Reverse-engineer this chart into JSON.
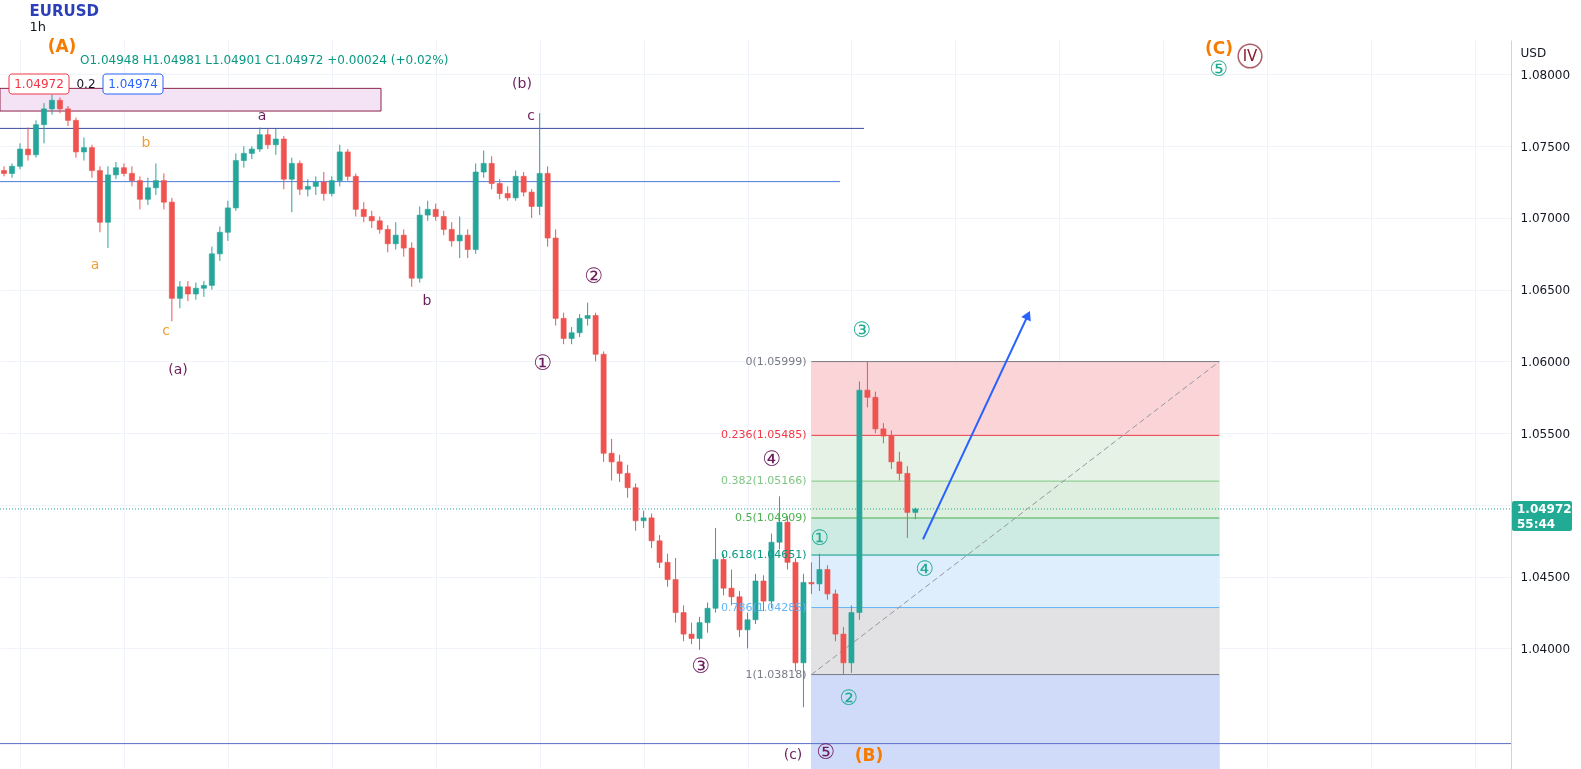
{
  "chart_data": {
    "type": "candlestick",
    "title": "EURUSD",
    "subtitle": "1h",
    "ylabel": "USD",
    "categories": [
      null,
      null,
      null,
      null,
      null,
      null,
      null,
      null,
      null,
      null,
      null,
      null,
      null,
      null,
      null,
      null,
      null,
      null,
      null,
      null,
      null,
      null,
      null,
      null,
      null,
      null,
      null,
      null,
      null,
      null,
      null,
      null,
      null,
      null,
      null,
      null,
      null,
      null,
      null,
      null,
      null,
      null,
      null,
      null,
      null,
      null,
      null,
      null,
      null,
      null,
      null,
      null,
      null,
      null,
      null,
      null,
      null,
      null,
      null,
      null,
      null,
      null,
      null,
      null,
      null,
      null,
      null,
      null,
      null,
      null,
      null,
      null,
      null,
      null,
      null,
      null,
      null,
      null,
      null,
      null,
      null,
      null,
      null,
      null,
      null,
      null,
      null,
      null,
      null,
      null,
      null,
      null,
      null,
      null,
      null,
      null,
      null,
      null,
      null,
      null,
      null,
      null,
      null,
      null,
      null,
      null,
      null,
      null,
      null,
      null,
      null,
      null,
      null,
      null,
      null,
      null,
      null,
      null,
      null,
      null,
      null,
      null,
      null,
      null,
      null,
      null,
      null,
      null,
      null,
      null,
      null,
      null,
      null,
      null,
      null,
      null,
      null,
      null,
      null,
      null,
      null,
      null,
      null,
      null,
      null,
      null,
      null,
      null,
      null,
      null,
      null,
      null,
      null,
      null,
      null,
      null,
      null,
      null,
      null,
      null,
      null,
      null,
      null,
      null,
      null,
      null,
      null,
      null,
      null,
      null,
      null,
      null,
      null,
      null,
      null,
      null,
      null,
      null,
      null,
      null,
      null,
      null,
      null,
      null,
      null,
      null,
      null,
      null,
      null
    ],
    "ohlc": [
      [
        1.0733,
        1.0736,
        1.0729,
        1.0731
      ],
      [
        1.0731,
        1.0738,
        1.0728,
        1.0736
      ],
      [
        1.0736,
        1.0752,
        1.0734,
        1.0748
      ],
      [
        1.0748,
        1.0763,
        1.074,
        1.0744
      ],
      [
        1.0744,
        1.0768,
        1.0742,
        1.0765
      ],
      [
        1.0765,
        1.078,
        1.0752,
        1.0776
      ],
      [
        1.0776,
        1.0786,
        1.0772,
        1.0782
      ],
      [
        1.0782,
        1.0784,
        1.0773,
        1.0776
      ],
      [
        1.0776,
        1.0778,
        1.0764,
        1.0768
      ],
      [
        1.0768,
        1.077,
        1.0742,
        1.0746
      ],
      [
        1.0746,
        1.0756,
        1.074,
        1.0749
      ],
      [
        1.0749,
        1.0751,
        1.0728,
        1.0733
      ],
      [
        1.0733,
        1.0736,
        1.069,
        1.0697
      ],
      [
        1.0697,
        1.0736,
        1.0679,
        1.073
      ],
      [
        1.073,
        1.0739,
        1.0727,
        1.0735
      ],
      [
        1.0735,
        1.0738,
        1.0729,
        1.0731
      ],
      [
        1.0731,
        1.0736,
        1.0722,
        1.0726
      ],
      [
        1.0726,
        1.0729,
        1.0706,
        1.0713
      ],
      [
        1.0713,
        1.0728,
        1.0709,
        1.0721
      ],
      [
        1.0721,
        1.0738,
        1.0716,
        1.0726
      ],
      [
        1.0726,
        1.0731,
        1.0706,
        1.0711
      ],
      [
        1.0711,
        1.0714,
        1.0628,
        1.0644
      ],
      [
        1.0644,
        1.0656,
        1.0637,
        1.0652
      ],
      [
        1.0652,
        1.0656,
        1.0642,
        1.0647
      ],
      [
        1.0647,
        1.0655,
        1.0643,
        1.0651
      ],
      [
        1.0651,
        1.0656,
        1.0645,
        1.0653
      ],
      [
        1.0653,
        1.068,
        1.065,
        1.0675
      ],
      [
        1.0675,
        1.0694,
        1.067,
        1.069
      ],
      [
        1.069,
        1.0712,
        1.0684,
        1.0707
      ],
      [
        1.0707,
        1.0745,
        1.0705,
        1.074
      ],
      [
        1.074,
        1.075,
        1.0735,
        1.0745
      ],
      [
        1.0745,
        1.075,
        1.0741,
        1.0748
      ],
      [
        1.0748,
        1.0763,
        1.0746,
        1.0758
      ],
      [
        1.0758,
        1.0762,
        1.0748,
        1.0751
      ],
      [
        1.0751,
        1.0762,
        1.0744,
        1.0755
      ],
      [
        1.0755,
        1.0757,
        1.072,
        1.0727
      ],
      [
        1.0727,
        1.0742,
        1.0704,
        1.0738
      ],
      [
        1.0738,
        1.074,
        1.0716,
        1.072
      ],
      [
        1.072,
        1.0727,
        1.0715,
        1.0722
      ],
      [
        1.0722,
        1.0729,
        1.0716,
        1.0725
      ],
      [
        1.0725,
        1.0732,
        1.0712,
        1.0717
      ],
      [
        1.0717,
        1.0729,
        1.0715,
        1.0726
      ],
      [
        1.0726,
        1.0751,
        1.0722,
        1.0746
      ],
      [
        1.0746,
        1.0748,
        1.0726,
        1.0729
      ],
      [
        1.0729,
        1.0731,
        1.0701,
        1.0706
      ],
      [
        1.0706,
        1.0711,
        1.0697,
        1.0701
      ],
      [
        1.0701,
        1.0705,
        1.0693,
        1.0698
      ],
      [
        1.0698,
        1.0701,
        1.0689,
        1.0692
      ],
      [
        1.0692,
        1.0695,
        1.0676,
        1.0682
      ],
      [
        1.0682,
        1.0697,
        1.0678,
        1.0688
      ],
      [
        1.0688,
        1.0692,
        1.0673,
        1.0679
      ],
      [
        1.0679,
        1.0683,
        1.0652,
        1.0658
      ],
      [
        1.0658,
        1.0708,
        1.0655,
        1.0702
      ],
      [
        1.0702,
        1.0712,
        1.0698,
        1.0706
      ],
      [
        1.0706,
        1.071,
        1.0698,
        1.0701
      ],
      [
        1.0701,
        1.0705,
        1.0688,
        1.0692
      ],
      [
        1.0692,
        1.0697,
        1.068,
        1.0684
      ],
      [
        1.0684,
        1.0701,
        1.0672,
        1.0688
      ],
      [
        1.0688,
        1.0692,
        1.0672,
        1.0678
      ],
      [
        1.0678,
        1.0738,
        1.0675,
        1.0732
      ],
      [
        1.0732,
        1.0747,
        1.0728,
        1.0738
      ],
      [
        1.0738,
        1.0743,
        1.072,
        1.0724
      ],
      [
        1.0724,
        1.0727,
        1.0713,
        1.0717
      ],
      [
        1.0717,
        1.0722,
        1.0712,
        1.0714
      ],
      [
        1.0714,
        1.0733,
        1.0712,
        1.0729
      ],
      [
        1.0729,
        1.0732,
        1.0715,
        1.0718
      ],
      [
        1.0718,
        1.072,
        1.07,
        1.0708
      ],
      [
        1.0708,
        1.0773,
        1.0702,
        1.0731
      ],
      [
        1.0731,
        1.0736,
        1.068,
        1.0686
      ],
      [
        1.0686,
        1.0692,
        1.0625,
        1.063
      ],
      [
        1.063,
        1.0634,
        1.0612,
        1.0616
      ],
      [
        1.0616,
        1.0624,
        1.0612,
        1.062
      ],
      [
        1.062,
        1.0633,
        1.0617,
        1.063
      ],
      [
        1.063,
        1.0641,
        1.0625,
        1.0632
      ],
      [
        1.0632,
        1.0634,
        1.06,
        1.0605
      ],
      [
        1.0605,
        1.0607,
        1.053,
        1.0536
      ],
      [
        1.0536,
        1.0546,
        1.0517,
        1.053
      ],
      [
        1.053,
        1.0535,
        1.0516,
        1.0522
      ],
      [
        1.0522,
        1.0528,
        1.0505,
        1.0512
      ],
      [
        1.0512,
        1.0515,
        1.0482,
        1.0489
      ],
      [
        1.0489,
        1.0496,
        1.0484,
        1.0491
      ],
      [
        1.0491,
        1.0494,
        1.047,
        1.0475
      ],
      [
        1.0475,
        1.0479,
        1.0456,
        1.046
      ],
      [
        1.046,
        1.0466,
        1.0443,
        1.0448
      ],
      [
        1.0448,
        1.0463,
        1.0418,
        1.0425
      ],
      [
        1.0425,
        1.043,
        1.0405,
        1.041
      ],
      [
        1.041,
        1.0418,
        1.0403,
        1.0407
      ],
      [
        1.0407,
        1.0422,
        1.0399,
        1.0418
      ],
      [
        1.0418,
        1.0432,
        1.0411,
        1.0428
      ],
      [
        1.0428,
        1.0484,
        1.0425,
        1.0462
      ],
      [
        1.0462,
        1.0466,
        1.0437,
        1.0442
      ],
      [
        1.0442,
        1.0455,
        1.043,
        1.0436
      ],
      [
        1.0436,
        1.044,
        1.0408,
        1.0413
      ],
      [
        1.0413,
        1.0425,
        1.04,
        1.042
      ],
      [
        1.042,
        1.0452,
        1.0417,
        1.0447
      ],
      [
        1.0447,
        1.0451,
        1.0426,
        1.0433
      ],
      [
        1.0433,
        1.048,
        1.0428,
        1.0474
      ],
      [
        1.0474,
        1.0506,
        1.0469,
        1.0488
      ],
      [
        1.0488,
        1.0492,
        1.0455,
        1.046
      ],
      [
        1.046,
        1.0463,
        1.0384,
        1.039
      ],
      [
        1.039,
        1.0452,
        1.0359,
        1.0446
      ],
      [
        1.0446,
        1.046,
        1.0438,
        1.0445
      ],
      [
        1.0445,
        1.0466,
        1.044,
        1.0455
      ],
      [
        1.0455,
        1.0458,
        1.0434,
        1.0438
      ],
      [
        1.0438,
        1.0441,
        1.0405,
        1.041
      ],
      [
        1.041,
        1.0415,
        1.0382,
        1.039
      ],
      [
        1.039,
        1.043,
        1.0383,
        1.0425
      ],
      [
        1.0425,
        1.0586,
        1.042,
        1.058
      ],
      [
        1.058,
        1.06,
        1.0568,
        1.0575
      ],
      [
        1.0575,
        1.0579,
        1.055,
        1.0553
      ],
      [
        1.0553,
        1.0557,
        1.0543,
        1.0548
      ],
      [
        1.0548,
        1.0552,
        1.0525,
        1.053
      ],
      [
        1.053,
        1.0537,
        1.0517,
        1.0522
      ],
      [
        1.0522,
        1.0527,
        1.0477,
        1.04948
      ],
      [
        1.04948,
        1.04981,
        1.04901,
        1.04972
      ],
      null,
      null,
      null,
      null,
      null,
      null,
      null,
      null,
      null,
      null,
      null,
      null,
      null,
      null,
      null,
      null,
      null,
      null,
      null,
      null,
      null,
      null,
      null,
      null,
      null,
      null,
      null,
      null,
      null,
      null,
      null,
      null,
      null,
      null,
      null,
      null,
      null,
      null,
      null,
      null,
      null,
      null,
      null,
      null,
      null,
      null,
      null,
      null,
      null,
      null,
      null,
      null,
      null,
      null,
      null,
      null,
      null,
      null,
      null,
      null,
      null,
      null,
      null,
      null,
      null,
      null,
      null,
      null,
      null,
      null,
      null,
      null,
      null,
      null
    ],
    "colors": [
      "#ef5350",
      "#26a69a",
      "#26a69a",
      "#ef5350",
      "#26a69a",
      "#26a69a",
      "#26a69a",
      "#ef5350",
      "#ef5350",
      "#ef5350",
      "#26a69a",
      "#ef5350",
      "#ef5350",
      "#26a69a",
      "#26a69a",
      "#ef5350",
      "#ef5350",
      "#ef5350",
      "#26a69a",
      "#26a69a",
      "#ef5350",
      "#ef5350",
      "#26a69a",
      "#ef5350",
      "#26a69a",
      "#26a69a",
      "#26a69a",
      "#26a69a",
      "#26a69a",
      "#26a69a",
      "#26a69a",
      "#26a69a",
      "#26a69a",
      "#ef5350",
      "#26a69a",
      "#ef5350",
      "#26a69a",
      "#ef5350",
      "#26a69a",
      "#26a69a",
      "#ef5350",
      "#26a69a",
      "#26a69a",
      "#ef5350",
      "#ef5350",
      "#ef5350",
      "#ef5350",
      "#ef5350",
      "#ef5350",
      "#26a69a",
      "#ef5350",
      "#ef5350",
      "#26a69a",
      "#26a69a",
      "#ef5350",
      "#ef5350",
      "#ef5350",
      "#26a69a",
      "#ef5350",
      "#26a69a",
      "#26a69a",
      "#ef5350",
      "#ef5350",
      "#ef5350",
      "#26a69a",
      "#ef5350",
      "#ef5350",
      "#26a69a",
      "#ef5350",
      "#ef5350",
      "#ef5350",
      "#26a69a",
      "#26a69a",
      "#26a69a",
      "#ef5350",
      "#ef5350",
      "#ef5350",
      "#ef5350",
      "#ef5350",
      "#ef5350",
      "#26a69a",
      "#ef5350",
      "#ef5350",
      "#ef5350",
      "#ef5350",
      "#ef5350",
      "#ef5350",
      "#26a69a",
      "#26a69a",
      "#26a69a",
      "#ef5350",
      "#ef5350",
      "#ef5350",
      "#26a69a",
      "#26a69a",
      "#ef5350",
      "#26a69a",
      "#26a69a",
      "#ef5350",
      "#ef5350",
      "#26a69a",
      "#ef5350",
      "#26a69a",
      "#ef5350",
      "#ef5350",
      "#ef5350",
      "#26a69a",
      "#26a69a",
      "#ef5350",
      "#ef5350",
      "#ef5350",
      "#ef5350",
      "#ef5350",
      "#ef5350",
      "#26a69a",
      null,
      null,
      null,
      null,
      null,
      null,
      null,
      null,
      null,
      null,
      null,
      null,
      null,
      null,
      null,
      null,
      null,
      null,
      null,
      null,
      null,
      null,
      null,
      null,
      null,
      null,
      null,
      null,
      null,
      null,
      null,
      null,
      null,
      null,
      null,
      null,
      null,
      null,
      null,
      null,
      null,
      null,
      null,
      null,
      null,
      null,
      null,
      null,
      null,
      null,
      null,
      null,
      null,
      null,
      null,
      null,
      null,
      null,
      null,
      null,
      null,
      null,
      null,
      null,
      null,
      null,
      null,
      null,
      null,
      null,
      null,
      null,
      null,
      null
    ],
    "series": [
      {
        "type": "line",
        "color": "#9598a1",
        "line_style": "dashed",
        "values": [
          null,
          null,
          null,
          null,
          null,
          null,
          null,
          null,
          null,
          null,
          null,
          null,
          null,
          null,
          null,
          null,
          null,
          null,
          null,
          null,
          null,
          null,
          null,
          null,
          null,
          null,
          null,
          null,
          null,
          null,
          null,
          null,
          null,
          null,
          null,
          null,
          null,
          null,
          null,
          null,
          null,
          null,
          null,
          null,
          null,
          null,
          null,
          null,
          null,
          null,
          null,
          null,
          null,
          null,
          null,
          null,
          null,
          null,
          null,
          null,
          null,
          null,
          null,
          null,
          null,
          null,
          null,
          null,
          null,
          null,
          null,
          null,
          null,
          null,
          null,
          null,
          null,
          null,
          null,
          null,
          null,
          null,
          null,
          null,
          null,
          null,
          null,
          null,
          null,
          null,
          null,
          null,
          null,
          null,
          null,
          null,
          null,
          null,
          null,
          null,
          null,
          1.03818,
          null,
          null,
          null,
          null,
          null,
          null,
          null,
          null,
          null,
          null,
          null,
          null,
          null,
          null,
          null,
          null,
          null,
          null,
          null,
          null,
          null,
          null,
          null,
          null,
          null,
          null,
          null,
          null,
          null,
          null,
          null,
          null,
          null,
          null,
          null,
          null,
          null,
          null,
          null,
          null,
          null,
          null,
          null,
          null,
          null,
          null,
          null,
          null,
          null,
          null,
          1.05999,
          null,
          null,
          null,
          null,
          null,
          null,
          null,
          null,
          null,
          null,
          null,
          null,
          null,
          null,
          null,
          null,
          null,
          null,
          null,
          null,
          null,
          null,
          null,
          null,
          null,
          null,
          null,
          null,
          null,
          null,
          null,
          null,
          null,
          null,
          null,
          null
        ]
      },
      {
        "type": "line",
        "color": "#2962ff",
        "marker": "triangle",
        "values": [
          null,
          null,
          null,
          null,
          null,
          null,
          null,
          null,
          null,
          null,
          null,
          null,
          null,
          null,
          null,
          null,
          null,
          null,
          null,
          null,
          null,
          null,
          null,
          null,
          null,
          null,
          null,
          null,
          null,
          null,
          null,
          null,
          null,
          null,
          null,
          null,
          null,
          null,
          null,
          null,
          null,
          null,
          null,
          null,
          null,
          null,
          null,
          null,
          null,
          null,
          null,
          null,
          null,
          null,
          null,
          null,
          null,
          null,
          null,
          null,
          null,
          null,
          null,
          null,
          null,
          null,
          null,
          null,
          null,
          null,
          null,
          null,
          null,
          null,
          null,
          null,
          null,
          null,
          null,
          null,
          null,
          null,
          null,
          null,
          null,
          null,
          null,
          null,
          null,
          null,
          null,
          null,
          null,
          null,
          null,
          null,
          null,
          null,
          null,
          null,
          null,
          null,
          null,
          null,
          null,
          null,
          null,
          null,
          null,
          null,
          null,
          null,
          null,
          null,
          null,
          1.04766,
          null,
          null,
          null,
          null,
          null,
          null,
          null,
          null,
          null,
          null,
          null,
          null,
          1.06313,
          null,
          null,
          null,
          null,
          null,
          null,
          null,
          null,
          null,
          null,
          null,
          null,
          null,
          null,
          null,
          null,
          null,
          null,
          null,
          null,
          null,
          null,
          null,
          null,
          null,
          null,
          null,
          null,
          null,
          null,
          null,
          null,
          null,
          null,
          null,
          null,
          null,
          null,
          null,
          null,
          null,
          null,
          null,
          null,
          null,
          null,
          null,
          null,
          null,
          null,
          null,
          null,
          null,
          null,
          null,
          null,
          null,
          null,
          null,
          null
        ]
      }
    ],
    "ylim": [
      1.0316,
      1.0824
    ],
    "yticks": [
      {
        "value": 1.04,
        "label": "1.04000"
      },
      {
        "value": 1.045,
        "label": "1.04500"
      },
      {
        "value": 1.05,
        "label": null
      },
      {
        "value": 1.055,
        "label": "1.05500"
      },
      {
        "value": 1.06,
        "label": "1.06000"
      },
      {
        "value": 1.065,
        "label": "1.06500"
      },
      {
        "value": 1.07,
        "label": "1.07000"
      },
      {
        "value": 1.075,
        "label": "1.07500"
      },
      {
        "value": 1.08,
        "label": "1.08000"
      }
    ],
    "grid": true,
    "tick_labels": "y",
    "ref_lines": [
      {
        "axis": "y",
        "value": 1.07624,
        "color": "#3c4a9e"
      },
      {
        "axis": "y",
        "value": 1.07253,
        "color": "#4b7bd6"
      },
      {
        "axis": "y",
        "value": 1.03337,
        "color": "#5d6fc8"
      },
      {
        "axis": "y",
        "value": 1.04972,
        "label": "1.04972",
        "color": "#22ab94",
        "line_style": "dotted"
      },
      {
        "axis": "y",
        "value": 1.05999,
        "label": "0(1.05999)",
        "color": "#787b86"
      },
      {
        "axis": "y",
        "value": 1.05485,
        "label": "0.236(1.05485)",
        "color": "#f23645"
      },
      {
        "axis": "y",
        "value": 1.05166,
        "label": "0.382(1.05166)",
        "color": "#81c784"
      },
      {
        "axis": "y",
        "value": 1.04909,
        "label": "0.5(1.04909)",
        "color": "#4caf50"
      },
      {
        "axis": "y",
        "value": 1.04651,
        "label": "0.618(1.04651)",
        "color": "#089981"
      },
      {
        "axis": "y",
        "value": 1.04285,
        "label": "0.786(1.04285)",
        "color": "#64b5f6"
      },
      {
        "axis": "y",
        "value": 1.03818,
        "label": "1(1.03818)",
        "color": "#787b86"
      }
    ],
    "bands": [
      {
        "axis": "y",
        "from": 1.07745,
        "to": 1.07903,
        "color": "#f3e3f4"
      },
      {
        "axis": "y",
        "from": 1.05485,
        "to": 1.05999,
        "color": "#fad4d7"
      },
      {
        "axis": "y",
        "from": 1.05166,
        "to": 1.05485,
        "color": "#e5f2e5"
      },
      {
        "axis": "y",
        "from": 1.04909,
        "to": 1.05166,
        "color": "#deefdf"
      },
      {
        "axis": "y",
        "from": 1.04651,
        "to": 1.04909,
        "color": "#cdeae3"
      },
      {
        "axis": "y",
        "from": 1.04285,
        "to": 1.04651,
        "color": "#deeefc"
      },
      {
        "axis": "y",
        "from": 1.03818,
        "to": 1.04285,
        "color": "#e2e2e4"
      },
      {
        "axis": "y",
        "from": 1.0316,
        "to": 1.03818,
        "color": "#d0dbfa"
      }
    ],
    "annotations": [
      "O1.04948 H1.04981 L1.04901 C1.04972 +0.00024 (+0.02%)",
      "1.04972",
      "0.2",
      "1.04974",
      "55:44",
      "(A)",
      "b",
      "a",
      "c",
      "(a)",
      "a",
      "b",
      "c",
      "(b)",
      "①",
      "②",
      "③",
      "④",
      "(c)",
      "⑤",
      "(B)",
      "①",
      "②",
      "③",
      "④",
      "⑤",
      "IV",
      "(C)"
    ]
  }
}
